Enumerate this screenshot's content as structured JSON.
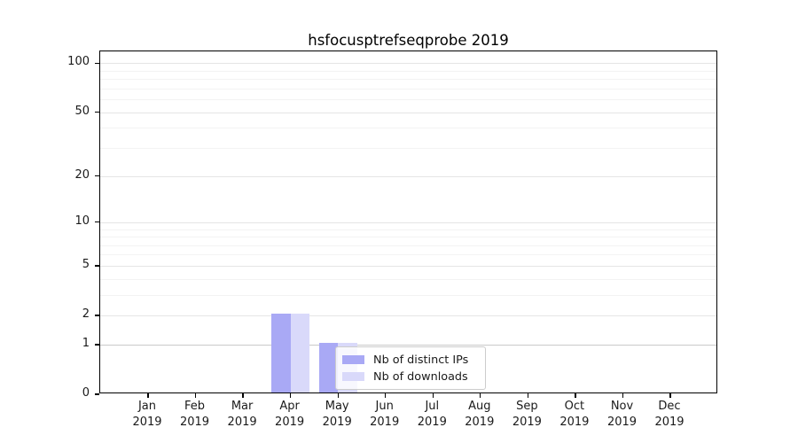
{
  "chart_data": {
    "type": "bar",
    "title": "hsfocusptrefseqprobe 2019",
    "categories": [
      {
        "month": "Jan",
        "year": "2019"
      },
      {
        "month": "Feb",
        "year": "2019"
      },
      {
        "month": "Mar",
        "year": "2019"
      },
      {
        "month": "Apr",
        "year": "2019"
      },
      {
        "month": "May",
        "year": "2019"
      },
      {
        "month": "Jun",
        "year": "2019"
      },
      {
        "month": "Jul",
        "year": "2019"
      },
      {
        "month": "Aug",
        "year": "2019"
      },
      {
        "month": "Sep",
        "year": "2019"
      },
      {
        "month": "Oct",
        "year": "2019"
      },
      {
        "month": "Nov",
        "year": "2019"
      },
      {
        "month": "Dec",
        "year": "2019"
      }
    ],
    "series": [
      {
        "name": "Nb of distinct IPs",
        "color": "#a9a9f5",
        "values": [
          0,
          0,
          0,
          2,
          1,
          0,
          0,
          0,
          0,
          0,
          0,
          0
        ]
      },
      {
        "name": "Nb of downloads",
        "color": "#d9d9fa",
        "values": [
          0,
          0,
          0,
          2,
          1,
          0,
          0,
          0,
          0,
          0,
          0,
          0
        ]
      }
    ],
    "xlabel": "",
    "ylabel": "",
    "y_scale": "log1p",
    "ylim": [
      0,
      118
    ],
    "y_major_ticks": [
      0,
      1,
      2,
      5,
      10,
      20,
      50,
      100
    ],
    "y_minor_ticks": [
      3,
      4,
      6,
      7,
      8,
      9,
      30,
      40,
      60,
      70,
      80,
      90
    ],
    "grid": true,
    "legend_position": "lower center"
  },
  "colors": {
    "background": "#ffffff",
    "axis": "#000000",
    "grid_major": "#e5e5e5",
    "grid_minor": "#f3f3f3",
    "grid_unit_line": "#c9c9c9",
    "legend_border": "#cccccc"
  }
}
